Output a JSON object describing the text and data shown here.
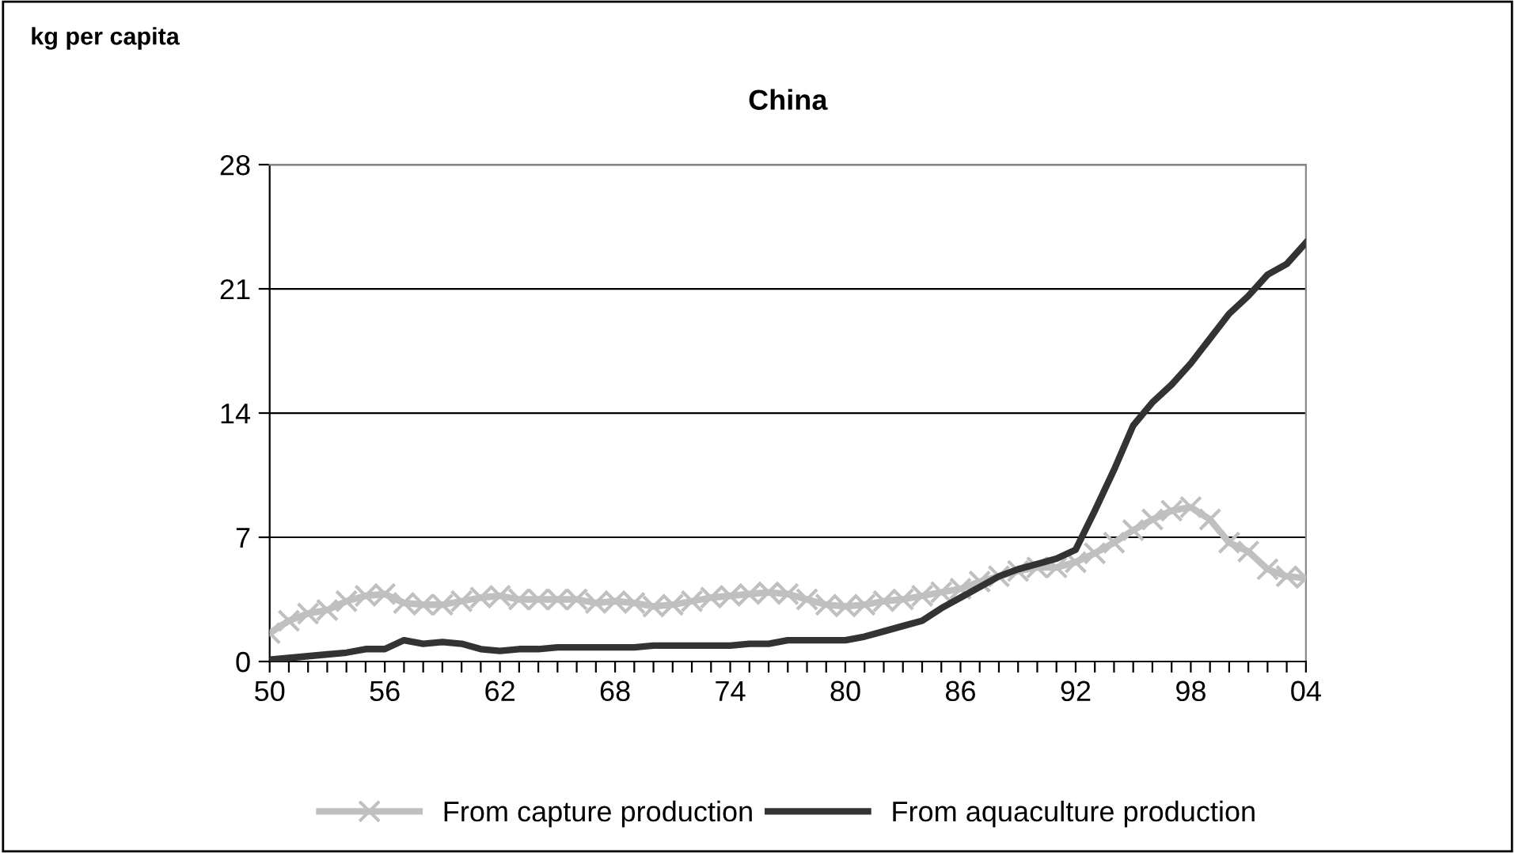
{
  "chart_data": {
    "type": "line",
    "title": "China",
    "ylabel": "kg per capita",
    "categories": [
      "50",
      null,
      null,
      null,
      null,
      null,
      "56",
      null,
      null,
      null,
      null,
      null,
      "62",
      null,
      null,
      null,
      null,
      null,
      "68",
      null,
      null,
      null,
      null,
      null,
      "74",
      null,
      null,
      null,
      null,
      null,
      "80",
      null,
      null,
      null,
      null,
      null,
      "86",
      null,
      null,
      null,
      null,
      null,
      "92",
      null,
      null,
      null,
      null,
      null,
      "98",
      null,
      null,
      null,
      null,
      null,
      "04"
    ],
    "series": [
      {
        "name": "From capture production",
        "color": "#c0c0c0",
        "marker": "cross",
        "values": [
          1.6,
          2.3,
          2.7,
          2.9,
          3.4,
          3.7,
          3.8,
          3.3,
          3.2,
          3.2,
          3.4,
          3.6,
          3.7,
          3.5,
          3.5,
          3.5,
          3.5,
          3.3,
          3.4,
          3.3,
          3.1,
          3.2,
          3.4,
          3.6,
          3.7,
          3.8,
          3.9,
          3.8,
          3.5,
          3.2,
          3.1,
          3.2,
          3.4,
          3.5,
          3.7,
          3.9,
          4.1,
          4.5,
          4.8,
          5.1,
          5.3,
          5.3,
          5.6,
          6.1,
          6.7,
          7.4,
          8.0,
          8.5,
          8.7,
          8.0,
          6.7,
          6.2,
          5.2,
          4.8,
          4.7
        ]
      },
      {
        "name": "From aquaculture production",
        "color": "#333333",
        "marker": "none",
        "values": [
          0.1,
          0.2,
          0.3,
          0.4,
          0.5,
          0.7,
          0.7,
          1.2,
          1.0,
          1.1,
          1.0,
          0.7,
          0.6,
          0.7,
          0.7,
          0.8,
          0.8,
          0.8,
          0.8,
          0.8,
          0.9,
          0.9,
          0.9,
          0.9,
          0.9,
          1.0,
          1.0,
          1.2,
          1.2,
          1.2,
          1.2,
          1.4,
          1.7,
          2.0,
          2.3,
          3.0,
          3.6,
          4.2,
          4.8,
          5.2,
          5.5,
          5.8,
          6.3,
          8.5,
          10.8,
          13.3,
          14.6,
          15.6,
          16.8,
          18.2,
          19.6,
          20.6,
          21.8,
          22.4,
          23.6
        ]
      }
    ],
    "ylim": [
      0,
      28
    ],
    "yticks": [
      0,
      7,
      14,
      21,
      28
    ],
    "grid": "y",
    "legend": "bottom",
    "line_style": "solid"
  }
}
